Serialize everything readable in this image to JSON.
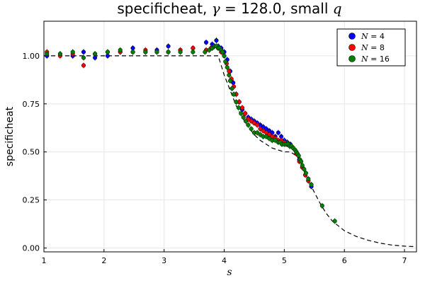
{
  "chart_data": {
    "type": "scatter",
    "title_parts": [
      "specificheat, ",
      "γ",
      " = 128.0,  small ",
      "q"
    ],
    "xlabel": "s",
    "ylabel": "specificheat",
    "xlim": [
      1.0,
      7.2
    ],
    "ylim": [
      -0.02,
      1.18
    ],
    "xticks": [
      1,
      2,
      3,
      4,
      5,
      6,
      7
    ],
    "yticks": [
      0.0,
      0.25,
      0.5,
      0.75,
      1.0
    ],
    "ytick_labels": [
      "0.00",
      "0.25",
      "0.50",
      "0.75",
      "1.00"
    ],
    "grid": true,
    "legend_position": "top-right",
    "reference_curve": {
      "style": "dashed",
      "color": "#000000",
      "x": [
        1.0,
        3.9,
        3.93,
        3.97,
        4.0,
        4.05,
        4.1,
        4.15,
        4.2,
        4.3,
        4.4,
        4.5,
        4.6,
        4.7,
        4.8,
        4.9,
        5.0,
        5.05,
        5.1,
        5.15,
        5.2,
        5.25,
        5.3,
        5.35,
        5.4,
        5.5,
        5.6,
        5.7,
        5.8,
        6.0,
        6.2,
        6.4,
        6.6,
        6.8,
        7.0,
        7.2
      ],
      "y": [
        1.0,
        1.0,
        0.97,
        0.93,
        0.9,
        0.86,
        0.82,
        0.78,
        0.74,
        0.68,
        0.63,
        0.59,
        0.56,
        0.54,
        0.52,
        0.51,
        0.5,
        0.5,
        0.5,
        0.49,
        0.48,
        0.46,
        0.43,
        0.39,
        0.35,
        0.29,
        0.23,
        0.18,
        0.14,
        0.09,
        0.06,
        0.04,
        0.025,
        0.015,
        0.01,
        0.007
      ]
    },
    "series": [
      {
        "name": "N = 4",
        "name_parts": [
          "N",
          " = 4"
        ],
        "color": "#0000ff",
        "x": [
          1.05,
          1.27,
          1.48,
          1.66,
          1.85,
          2.06,
          2.27,
          2.48,
          2.69,
          2.88,
          3.07,
          3.27,
          3.48,
          3.7,
          3.8,
          3.87,
          3.9,
          3.95,
          4.0,
          4.05,
          4.1,
          4.15,
          4.2,
          4.25,
          4.3,
          4.35,
          4.4,
          4.45,
          4.5,
          4.55,
          4.6,
          4.65,
          4.7,
          4.75,
          4.8,
          4.85,
          4.9,
          4.95,
          5.0,
          5.05,
          5.1,
          5.15,
          5.2,
          5.25,
          5.3,
          5.35,
          5.4,
          5.45
        ],
        "y": [
          1.0,
          1.01,
          1.0,
          1.02,
          0.99,
          1.0,
          1.02,
          1.04,
          1.02,
          1.03,
          1.05,
          1.03,
          1.04,
          1.07,
          1.06,
          1.08,
          1.05,
          1.04,
          1.02,
          0.98,
          0.92,
          0.86,
          0.8,
          0.76,
          0.72,
          0.7,
          0.68,
          0.67,
          0.66,
          0.65,
          0.64,
          0.63,
          0.62,
          0.61,
          0.6,
          0.58,
          0.6,
          0.58,
          0.56,
          0.55,
          0.54,
          0.52,
          0.5,
          0.46,
          0.42,
          0.38,
          0.35,
          0.32
        ]
      },
      {
        "name": "N = 8",
        "name_parts": [
          "N",
          " = 8"
        ],
        "color": "#ff0000",
        "x": [
          1.05,
          1.27,
          1.48,
          1.66,
          1.85,
          2.06,
          2.27,
          2.48,
          2.69,
          2.88,
          3.07,
          3.27,
          3.48,
          3.7,
          3.78,
          3.84,
          3.9,
          3.95,
          4.0,
          4.04,
          4.08,
          4.12,
          4.16,
          4.2,
          4.25,
          4.3,
          4.35,
          4.4,
          4.45,
          4.5,
          4.55,
          4.6,
          4.65,
          4.7,
          4.75,
          4.8,
          4.85,
          4.9,
          4.95,
          5.0,
          5.05,
          5.1,
          5.15,
          5.2,
          5.25,
          5.3,
          5.35,
          5.4
        ],
        "y": [
          1.02,
          1.0,
          1.01,
          0.95,
          1.01,
          1.02,
          1.02,
          1.02,
          1.03,
          1.02,
          1.02,
          1.03,
          1.04,
          1.03,
          1.04,
          1.05,
          1.04,
          1.02,
          1.0,
          0.96,
          0.92,
          0.88,
          0.84,
          0.8,
          0.76,
          0.73,
          0.7,
          0.67,
          0.66,
          0.65,
          0.64,
          0.62,
          0.61,
          0.6,
          0.59,
          0.58,
          0.57,
          0.56,
          0.56,
          0.55,
          0.54,
          0.53,
          0.52,
          0.49,
          0.45,
          0.42,
          0.38,
          0.35
        ]
      },
      {
        "name": "N = 16",
        "name_parts": [
          "N",
          " = 16"
        ],
        "color": "#008000",
        "x": [
          1.05,
          1.27,
          1.48,
          1.66,
          1.85,
          2.06,
          2.27,
          2.48,
          2.69,
          2.88,
          3.07,
          3.27,
          3.48,
          3.68,
          3.75,
          3.8,
          3.84,
          3.87,
          3.9,
          3.92,
          3.95,
          3.97,
          4.0,
          4.02,
          4.05,
          4.08,
          4.1,
          4.13,
          4.16,
          4.2,
          4.24,
          4.28,
          4.32,
          4.36,
          4.4,
          4.45,
          4.5,
          4.55,
          4.6,
          4.65,
          4.7,
          4.75,
          4.8,
          4.85,
          4.9,
          4.93,
          4.96,
          5.0,
          5.03,
          5.06,
          5.09,
          5.12,
          5.15,
          5.18,
          5.2,
          5.22,
          5.24,
          5.26,
          5.28,
          5.3,
          5.33,
          5.36,
          5.4,
          5.45,
          5.63,
          5.84
        ],
        "y": [
          1.01,
          1.01,
          1.02,
          0.99,
          1.01,
          1.02,
          1.03,
          1.02,
          1.02,
          1.02,
          1.02,
          1.02,
          1.02,
          1.02,
          1.03,
          1.04,
          1.05,
          1.05,
          1.04,
          1.04,
          1.03,
          1.02,
          1.0,
          0.97,
          0.94,
          0.9,
          0.87,
          0.83,
          0.8,
          0.76,
          0.73,
          0.7,
          0.68,
          0.66,
          0.64,
          0.62,
          0.6,
          0.6,
          0.59,
          0.58,
          0.58,
          0.57,
          0.56,
          0.56,
          0.55,
          0.55,
          0.54,
          0.54,
          0.54,
          0.54,
          0.53,
          0.53,
          0.52,
          0.51,
          0.5,
          0.49,
          0.48,
          0.46,
          0.45,
          0.43,
          0.41,
          0.39,
          0.36,
          0.33,
          0.22,
          0.14
        ]
      }
    ]
  }
}
